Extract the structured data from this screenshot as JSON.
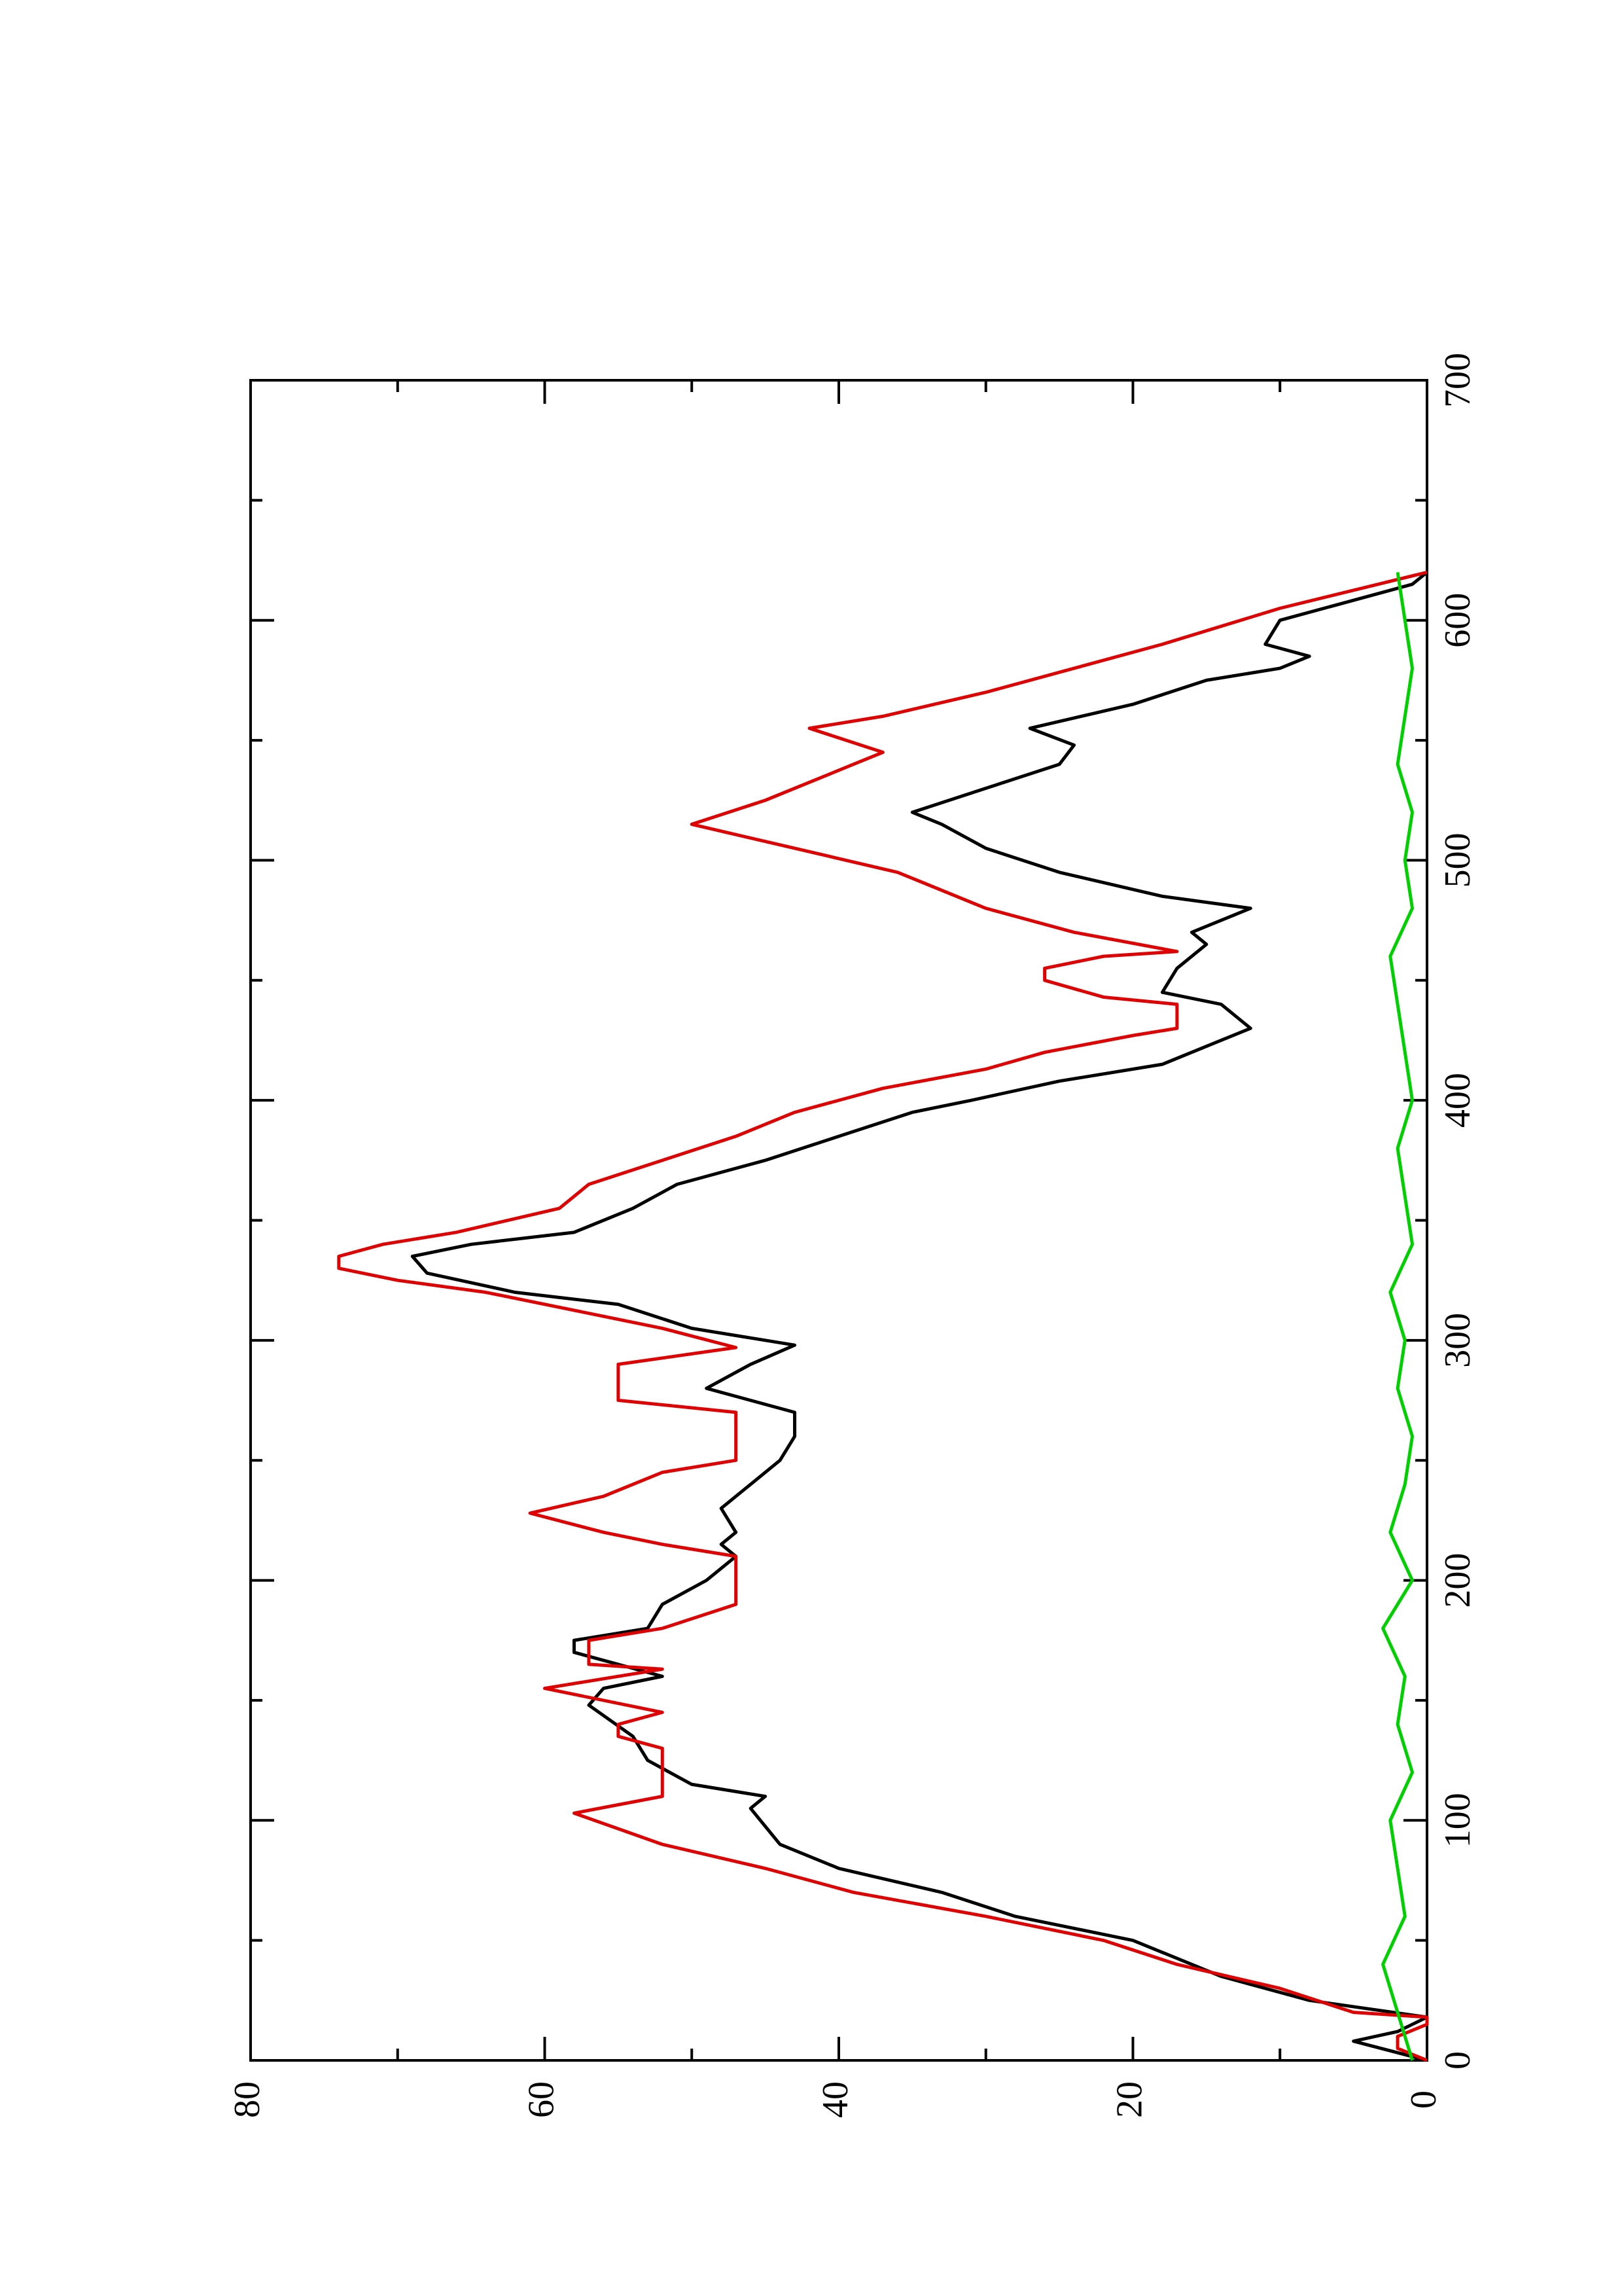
{
  "chart_data": {
    "type": "line",
    "rotated": true,
    "xlim": [
      0,
      700
    ],
    "xticks": [
      0,
      100,
      200,
      300,
      400,
      500,
      600,
      700
    ],
    "xminorticks": [
      50,
      150,
      250,
      350,
      450,
      550,
      650
    ],
    "ylim": [
      0,
      80
    ],
    "yticks": [
      0,
      20,
      40,
      60,
      80
    ],
    "yminorticks": [
      10,
      30,
      50,
      70
    ],
    "series": [
      {
        "color": "#000000",
        "x": [
          0,
          8,
          12,
          18,
          25,
          35,
          50,
          60,
          70,
          80,
          90,
          105,
          110,
          115,
          125,
          135,
          148,
          155,
          160,
          170,
          175,
          180,
          190,
          200,
          210,
          215,
          220,
          230,
          240,
          250,
          260,
          270,
          280,
          290,
          298,
          305,
          315,
          320,
          328,
          335,
          340,
          345,
          355,
          365,
          375,
          385,
          395,
          400,
          408,
          415,
          425,
          430,
          440,
          445,
          455,
          465,
          470,
          480,
          485,
          495,
          505,
          515,
          520,
          530,
          540,
          548,
          555,
          565,
          575,
          580,
          585,
          590,
          600,
          610,
          615,
          620
        ],
        "values": [
          0,
          5,
          2,
          0,
          8,
          14,
          20,
          28,
          33,
          40,
          44,
          46,
          45,
          50,
          53,
          54,
          57,
          56,
          52,
          58,
          58,
          53,
          52,
          49,
          47,
          48,
          47,
          48,
          46,
          44,
          43,
          43,
          49,
          46,
          43,
          50,
          55,
          62,
          68,
          69,
          65,
          58,
          54,
          51,
          45,
          40,
          35,
          31,
          25,
          18,
          14,
          12,
          14,
          18,
          17,
          15,
          16,
          12,
          18,
          25,
          30,
          33,
          35,
          30,
          25,
          24,
          27,
          20,
          15,
          10,
          8,
          11,
          10,
          4,
          1,
          0
        ]
      },
      {
        "color": "#e00000",
        "x": [
          0,
          5,
          10,
          15,
          18,
          20,
          30,
          40,
          50,
          60,
          70,
          80,
          90,
          103,
          110,
          130,
          135,
          140,
          145,
          155,
          163,
          165,
          175,
          180,
          190,
          210,
          215,
          220,
          228,
          235,
          245,
          250,
          270,
          275,
          290,
          297,
          305,
          310,
          320,
          325,
          330,
          335,
          340,
          345,
          355,
          365,
          375,
          385,
          395,
          405,
          413,
          420,
          427,
          430,
          440,
          443,
          450,
          455,
          460,
          462,
          470,
          480,
          495,
          505,
          515,
          525,
          540,
          545,
          555,
          560,
          570,
          580,
          590,
          605,
          620
        ],
        "values": [
          0,
          2,
          2,
          0,
          0,
          5,
          10,
          17,
          22,
          30,
          39,
          45,
          52,
          58,
          52,
          52,
          55,
          55,
          52,
          60,
          52,
          57,
          57,
          52,
          47,
          47,
          52,
          56,
          61,
          56,
          52,
          47,
          47,
          55,
          55,
          47,
          52,
          56,
          64,
          70,
          74,
          74,
          71,
          66,
          59,
          57,
          52,
          47,
          43,
          37,
          30,
          26,
          20,
          17,
          17,
          22,
          26,
          26,
          22,
          17,
          24,
          30,
          36,
          43,
          50,
          45,
          39,
          37,
          42,
          37,
          30,
          24,
          18,
          10,
          0
        ]
      },
      {
        "color": "#00d000",
        "x": [
          0,
          20,
          40,
          60,
          80,
          100,
          120,
          140,
          160,
          180,
          200,
          220,
          240,
          260,
          280,
          300,
          320,
          340,
          360,
          380,
          400,
          420,
          440,
          460,
          480,
          500,
          520,
          540,
          560,
          580,
          600,
          620
        ],
        "values": [
          1,
          2,
          3,
          1.5,
          2,
          2.5,
          1,
          2,
          1.5,
          3,
          1,
          2.5,
          1.5,
          1,
          2,
          1.5,
          2.5,
          1,
          1.5,
          2,
          1,
          1.5,
          2,
          2.5,
          1,
          1.5,
          1,
          2,
          1.5,
          1,
          1.5,
          2
        ]
      }
    ]
  }
}
